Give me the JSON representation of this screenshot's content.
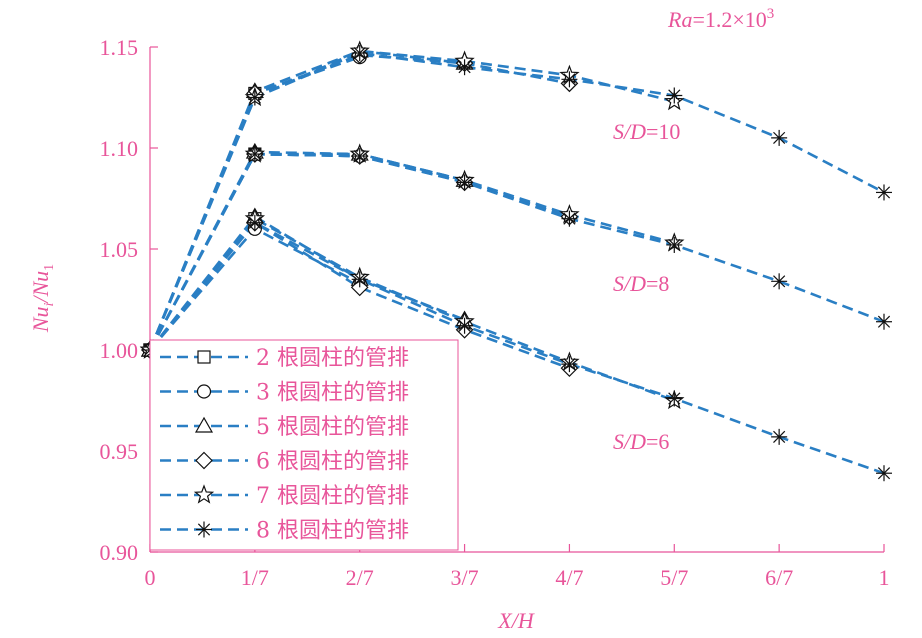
{
  "chart_data": {
    "type": "line",
    "xlabel": "X/H",
    "ylabel": "Nu_i/Nu_1",
    "ylim": [
      0.9,
      1.15
    ],
    "xlim": [
      0,
      1
    ],
    "x_ticks": [
      0,
      0.142857,
      0.285714,
      0.428571,
      0.571429,
      0.714286,
      0.857143,
      1
    ],
    "x_tick_labels": [
      "0",
      "1/7",
      "2/7",
      "3/7",
      "4/7",
      "5/7",
      "6/7",
      "1"
    ],
    "y_ticks": [
      0.9,
      0.95,
      1.0,
      1.05,
      1.1,
      1.15
    ],
    "y_tick_labels": [
      "0.90",
      "0.95",
      "1.00",
      "1.05",
      "1.10",
      "1.15"
    ],
    "grid": false,
    "legend_position": "bottom-left",
    "legend_entries": [
      "2 根圆柱的管排",
      "3 根圆柱的管排",
      "5 根圆柱的管排",
      "6 根圆柱的管排",
      "7 根圆柱的管排",
      "8 根圆柱的管排"
    ],
    "annotations": {
      "ra_prefix": "Ra",
      "ra_value": "=1.2×10",
      "ra_exp": "3",
      "sd10_prefix": "S/D",
      "sd10_value": "=10",
      "sd8_prefix": "S/D",
      "sd8_value": "=8",
      "sd6_prefix": "S/D",
      "sd6_value": "=6"
    },
    "groups": [
      {
        "label": "S/D=10",
        "series": [
          {
            "name": "2 根圆柱的管排",
            "marker": "square",
            "values": [
              1.0,
              1.127
            ]
          },
          {
            "name": "3 根圆柱的管排",
            "marker": "circle",
            "values": [
              1.0,
              1.127,
              1.145
            ]
          },
          {
            "name": "5 根圆柱的管排",
            "marker": "triangle",
            "values": [
              1.0,
              1.128,
              1.148,
              1.142
            ]
          },
          {
            "name": "6 根圆柱的管排",
            "marker": "diamond",
            "values": [
              1.0,
              1.127,
              1.146,
              1.142,
              1.132
            ]
          },
          {
            "name": "7 根圆柱的管排",
            "marker": "star",
            "values": [
              1.0,
              1.125,
              1.148,
              1.143,
              1.136,
              1.123
            ]
          },
          {
            "name": "8 根圆柱的管排",
            "marker": "asterisk",
            "values": [
              1.0,
              1.125,
              1.147,
              1.14,
              1.134,
              1.126,
              1.105,
              1.078
            ]
          }
        ]
      },
      {
        "label": "S/D=8",
        "series": [
          {
            "name": "2 根圆柱的管排",
            "marker": "square",
            "values": [
              1.0,
              1.097
            ]
          },
          {
            "name": "3 根圆柱的管排",
            "marker": "circle",
            "values": [
              1.0,
              1.097,
              1.096
            ]
          },
          {
            "name": "5 根圆柱的管排",
            "marker": "triangle",
            "values": [
              1.0,
              1.098,
              1.097,
              1.084
            ]
          },
          {
            "name": "6 根圆柱的管排",
            "marker": "diamond",
            "values": [
              1.0,
              1.097,
              1.096,
              1.083,
              1.066
            ]
          },
          {
            "name": "7 根圆柱的管排",
            "marker": "star",
            "values": [
              1.0,
              1.097,
              1.097,
              1.084,
              1.067,
              1.053
            ]
          },
          {
            "name": "8 根圆柱的管排",
            "marker": "asterisk",
            "values": [
              1.0,
              1.097,
              1.096,
              1.083,
              1.065,
              1.052,
              1.034,
              1.014
            ]
          }
        ]
      },
      {
        "label": "S/D=6",
        "series": [
          {
            "name": "2 根圆柱的管排",
            "marker": "square",
            "values": [
              1.0,
              1.065
            ]
          },
          {
            "name": "3 根圆柱的管排",
            "marker": "circle",
            "values": [
              1.0,
              1.06,
              1.033
            ]
          },
          {
            "name": "5 根圆柱的管排",
            "marker": "triangle",
            "values": [
              1.0,
              1.066,
              1.035,
              1.015
            ]
          },
          {
            "name": "6 根圆柱的管排",
            "marker": "diamond",
            "values": [
              1.0,
              1.063,
              1.031,
              1.01,
              0.991
            ]
          },
          {
            "name": "7 根圆柱的管排",
            "marker": "star",
            "values": [
              1.0,
              1.065,
              1.036,
              1.014,
              0.994,
              0.975
            ]
          },
          {
            "name": "8 根圆柱的管排",
            "marker": "asterisk",
            "values": [
              1.0,
              1.063,
              1.035,
              1.012,
              0.993,
              0.976,
              0.957,
              0.939
            ]
          }
        ]
      }
    ]
  }
}
